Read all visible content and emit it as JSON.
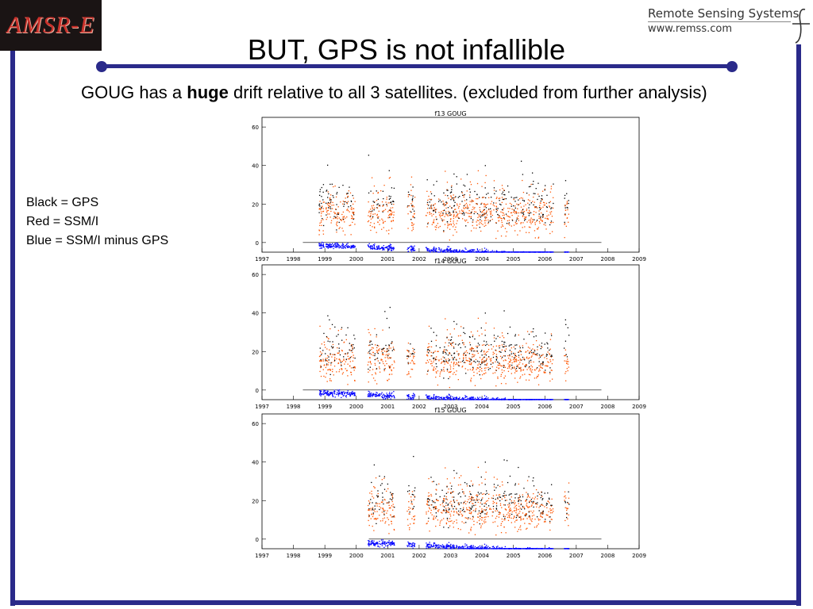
{
  "header": {
    "logo_text": "AMSR-E",
    "org_name": "Remote Sensing Systems",
    "org_url": "www.remss.com"
  },
  "slide": {
    "title": "BUT, GPS is not infallible",
    "subtitle_pre": "GOUG has a ",
    "subtitle_bold": "huge",
    "subtitle_post": " drift relative to all 3 satellites. (excluded from further analysis)",
    "legend": [
      "Black = GPS",
      "Red = SSM/I",
      "Blue = SSM/I minus GPS"
    ]
  },
  "colors": {
    "frame": "#2a2a8a",
    "gps": "#000000",
    "ssmi": "#ff5500",
    "diff": "#0000ff"
  },
  "chart_data": [
    {
      "type": "scatter",
      "title": "f13 GOUG",
      "xlim": [
        1997,
        2009
      ],
      "ylim": [
        -5,
        65
      ],
      "xticks": [
        1997,
        1998,
        1999,
        2000,
        2001,
        2002,
        2003,
        2004,
        2005,
        2006,
        2007,
        2008,
        2009
      ],
      "yticks": [
        0,
        20,
        40,
        60
      ],
      "zero_line": [
        1998.3,
        2007.8
      ],
      "segments": [
        [
          1998.8,
          1999.95
        ],
        [
          2000.35,
          2001.2
        ],
        [
          2001.6,
          2001.85
        ],
        [
          2002.2,
          2006.25
        ],
        [
          2006.6,
          2006.75
        ]
      ],
      "series": [
        {
          "name": "Black = GPS",
          "color": "#000000",
          "approx_mean": 20,
          "spread": 12
        },
        {
          "name": "Red = SSM/I",
          "color": "#ff5500",
          "approx_mean": 15,
          "spread": 12
        },
        {
          "name": "Blue = SSM/I minus GPS",
          "color": "#0000ff",
          "trend_start": [
            1998.8,
            -1
          ],
          "trend_end": [
            2006.75,
            -7
          ]
        }
      ]
    },
    {
      "type": "scatter",
      "title": "f14 GOUG",
      "xlim": [
        1997,
        2009
      ],
      "ylim": [
        -5,
        65
      ],
      "xticks": [
        1997,
        1998,
        1999,
        2000,
        2001,
        2002,
        2003,
        2004,
        2005,
        2006,
        2007,
        2008,
        2009
      ],
      "yticks": [
        0,
        20,
        40,
        60
      ],
      "zero_line": [
        1998.3,
        2007.8
      ],
      "segments": [
        [
          1998.8,
          1999.95
        ],
        [
          2000.35,
          2001.2
        ],
        [
          2001.6,
          2001.85
        ],
        [
          2002.2,
          2006.25
        ],
        [
          2006.6,
          2006.75
        ]
      ],
      "series": [
        {
          "name": "Black = GPS",
          "color": "#000000",
          "approx_mean": 20,
          "spread": 12
        },
        {
          "name": "Red = SSM/I",
          "color": "#ff5500",
          "approx_mean": 15,
          "spread": 12
        },
        {
          "name": "Blue = SSM/I minus GPS",
          "color": "#0000ff",
          "trend_start": [
            1998.8,
            -1
          ],
          "trend_end": [
            2006.75,
            -7
          ]
        }
      ]
    },
    {
      "type": "scatter",
      "title": "f15 GOUG",
      "xlim": [
        1997,
        2009
      ],
      "ylim": [
        -5,
        65
      ],
      "xticks": [
        1997,
        1998,
        1999,
        2000,
        2001,
        2002,
        2003,
        2004,
        2005,
        2006,
        2007,
        2008,
        2009
      ],
      "yticks": [
        0,
        20,
        40,
        60
      ],
      "zero_line": [
        2000.4,
        2007.8
      ],
      "segments": [
        [
          2000.35,
          2001.2
        ],
        [
          2001.6,
          2001.85
        ],
        [
          2002.2,
          2006.25
        ],
        [
          2006.6,
          2006.75
        ]
      ],
      "series": [
        {
          "name": "Black = GPS",
          "color": "#000000",
          "approx_mean": 20,
          "spread": 12
        },
        {
          "name": "Red = SSM/I",
          "color": "#ff5500",
          "approx_mean": 15,
          "spread": 12
        },
        {
          "name": "Blue = SSM/I minus GPS",
          "color": "#0000ff",
          "trend_start": [
            2000.35,
            -1.5
          ],
          "trend_end": [
            2006.75,
            -7
          ]
        }
      ]
    }
  ]
}
